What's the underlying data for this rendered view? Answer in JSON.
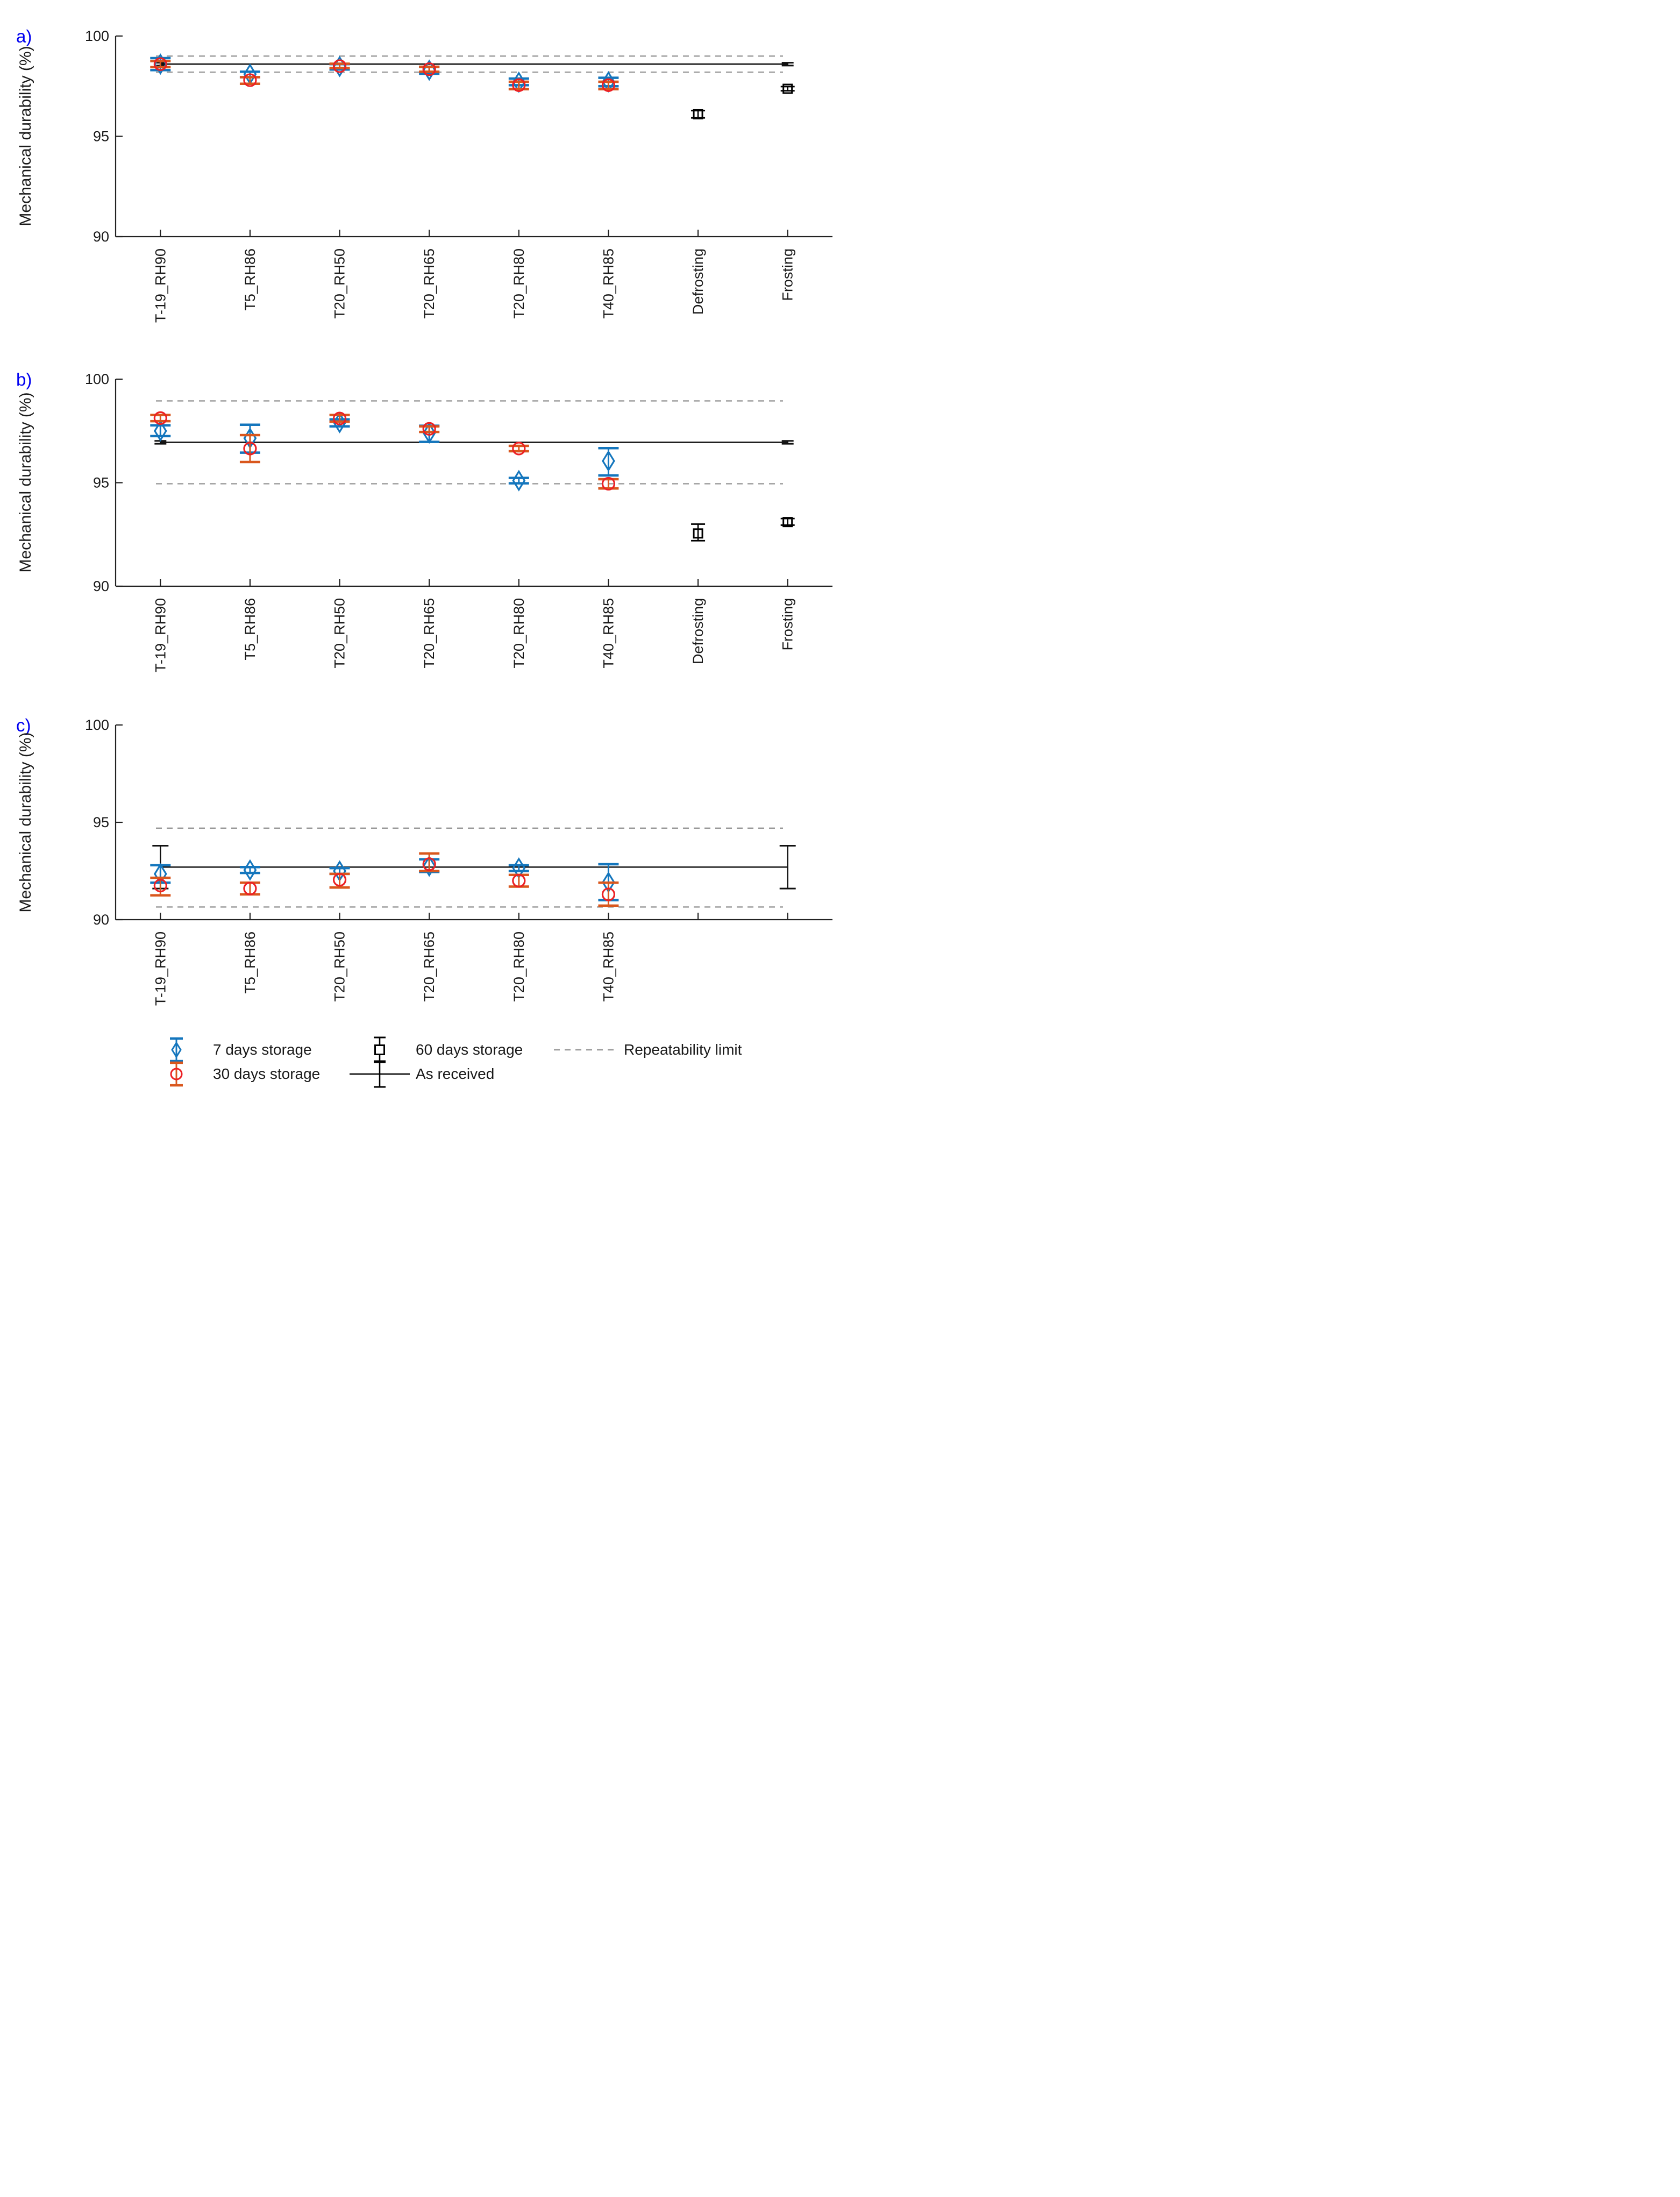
{
  "chart_data": {
    "type": "scatter",
    "title": "",
    "colors": {
      "blue_series": "#1476bd",
      "red_marker": "#ec2024",
      "red_errorbar": "#d9571d",
      "black_series": "#000000",
      "repeatability_dash": "#999999",
      "axis": "#222222",
      "panel_letter": "#0000f0"
    },
    "legend": {
      "position": "bottom",
      "items": [
        {
          "label": "7 days storage",
          "marker": "diamond-errorbar",
          "color": "#1476bd"
        },
        {
          "label": "30 days storage",
          "marker": "circle-errorbar",
          "color": "#ec2024"
        },
        {
          "label": "60 days storage",
          "marker": "square-errorbar",
          "color": "#000000"
        },
        {
          "label": "As received",
          "marker": "line-errorbar",
          "color": "#000000"
        },
        {
          "label": "Repeatability limit",
          "marker": "dashed-line",
          "color": "#999999"
        }
      ]
    },
    "panels": [
      {
        "panel_label": "a)",
        "ylabel": "Mechanical durability (%)",
        "ylim": [
          90,
          100
        ],
        "yticks": [
          100,
          95,
          90
        ],
        "categories": [
          "T-19_RH90",
          "T5_RH86",
          "T20_RH50",
          "T20_RH65",
          "T20_RH80",
          "T40_RH85",
          "Defrosting",
          "Frosting"
        ],
        "repeatability_limit": {
          "upper": 99.0,
          "lower": 98.2
        },
        "as_received": {
          "value": 98.6,
          "err": 0.07
        },
        "series": [
          {
            "name": "7 days storage",
            "marker": "diamond",
            "values": [
              98.6,
              98.1,
              98.48,
              98.3,
              97.7,
              97.72,
              null,
              null
            ],
            "lower": [
              98.3,
              97.95,
              98.33,
              98.12,
              97.55,
              97.5,
              null,
              null
            ],
            "upper": [
              98.9,
              98.22,
              98.6,
              98.46,
              97.88,
              97.92,
              null,
              null
            ]
          },
          {
            "name": "30 days storage",
            "marker": "circle",
            "values": [
              98.6,
              97.8,
              98.5,
              98.35,
              97.55,
              97.55,
              null,
              null
            ],
            "lower": [
              98.45,
              97.62,
              98.4,
              98.22,
              97.35,
              97.35,
              null,
              null
            ],
            "upper": [
              98.75,
              97.95,
              98.62,
              98.47,
              97.72,
              97.72,
              null,
              null
            ]
          },
          {
            "name": "60 days storage",
            "marker": "square",
            "values": [
              null,
              null,
              null,
              null,
              null,
              null,
              96.1,
              97.37
            ],
            "lower": [
              null,
              null,
              null,
              null,
              null,
              null,
              95.92,
              97.27
            ],
            "upper": [
              null,
              null,
              null,
              null,
              null,
              null,
              96.28,
              97.48
            ]
          }
        ]
      },
      {
        "panel_label": "b)",
        "ylabel": "Mechanical durability (%)",
        "ylim": [
          90,
          100
        ],
        "yticks": [
          100,
          95,
          90
        ],
        "categories": [
          "T-19_RH90",
          "T5_RH86",
          "T20_RH50",
          "T20_RH65",
          "T20_RH80",
          "T40_RH85",
          "Defrosting",
          "Frosting"
        ],
        "repeatability_limit": {
          "upper": 98.95,
          "lower": 94.95
        },
        "as_received": {
          "value": 96.95,
          "err": 0.07
        },
        "series": [
          {
            "name": "7 days storage",
            "marker": "diamond",
            "values": [
              97.5,
              97.15,
              97.9,
              97.4,
              95.1,
              96.05,
              null,
              null
            ],
            "lower": [
              97.25,
              96.45,
              97.72,
              96.97,
              94.97,
              95.35,
              null,
              null
            ],
            "upper": [
              97.77,
              97.8,
              98.06,
              97.75,
              95.23,
              96.67,
              null,
              null
            ]
          },
          {
            "name": "30 days storage",
            "marker": "circle",
            "values": [
              98.12,
              96.65,
              98.1,
              97.6,
              96.65,
              94.95,
              null,
              null
            ],
            "lower": [
              97.97,
              96.0,
              97.95,
              97.45,
              96.52,
              94.72,
              null,
              null
            ],
            "upper": [
              98.27,
              97.3,
              98.27,
              97.72,
              96.78,
              95.17,
              null,
              null
            ]
          },
          {
            "name": "60 days storage",
            "marker": "square",
            "values": [
              null,
              null,
              null,
              null,
              null,
              null,
              92.55,
              93.1
            ],
            "lower": [
              null,
              null,
              null,
              null,
              null,
              null,
              92.2,
              92.95
            ],
            "upper": [
              null,
              null,
              null,
              null,
              null,
              null,
              93.0,
              93.27
            ]
          }
        ]
      },
      {
        "panel_label": "c)",
        "ylabel": "Mechanical durability (%)",
        "ylim": [
          90,
          100
        ],
        "yticks": [
          100,
          95,
          90
        ],
        "categories": [
          "T-19_RH90",
          "T5_RH86",
          "T20_RH50",
          "T20_RH65",
          "T20_RH80",
          "T40_RH85",
          "",
          ""
        ],
        "repeatability_limit": {
          "upper": 94.7,
          "lower": 90.65
        },
        "as_received": {
          "value": 92.7,
          "err": 1.1
        },
        "series": [
          {
            "name": "7 days storage",
            "marker": "diamond",
            "values": [
              92.35,
              92.55,
              92.5,
              92.75,
              92.65,
              91.92,
              null,
              null
            ],
            "lower": [
              91.9,
              92.4,
              92.35,
              92.45,
              92.5,
              91.0,
              null,
              null
            ],
            "upper": [
              92.8,
              92.7,
              92.65,
              93.1,
              92.8,
              92.85,
              null,
              null
            ]
          },
          {
            "name": "30 days storage",
            "marker": "circle",
            "values": [
              91.75,
              91.6,
              92.05,
              92.85,
              92.0,
              91.3,
              null,
              null
            ],
            "lower": [
              91.25,
              91.3,
              91.65,
              92.5,
              91.7,
              90.72,
              null,
              null
            ],
            "upper": [
              92.15,
              91.9,
              92.35,
              93.4,
              92.3,
              91.9,
              null,
              null
            ]
          },
          {
            "name": "60 days storage",
            "marker": "square",
            "values": [
              null,
              null,
              null,
              null,
              null,
              null,
              null,
              null
            ],
            "lower": [
              null,
              null,
              null,
              null,
              null,
              null,
              null,
              null
            ],
            "upper": [
              null,
              null,
              null,
              null,
              null,
              null,
              null,
              null
            ]
          }
        ]
      }
    ]
  }
}
